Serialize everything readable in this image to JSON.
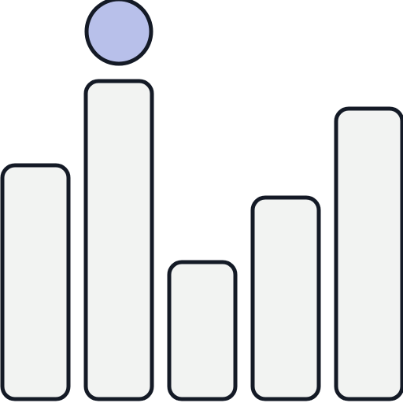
{
  "illustration": {
    "name": "bar-chart-icon-with-highlight-dot",
    "bars": [
      {
        "name": "bar-1",
        "level": 0.58
      },
      {
        "name": "bar-2",
        "level": 0.79
      },
      {
        "name": "bar-3",
        "level": 0.34
      },
      {
        "name": "bar-4",
        "level": 0.5
      },
      {
        "name": "bar-5",
        "level": 0.72
      }
    ],
    "highlight": {
      "name": "indicator-dot-icon",
      "above_bar_index": 1
    },
    "colors": {
      "background": "#ffffff",
      "bar_fill": "#f2f3f2",
      "outline": "#141a26",
      "dot_fill": "#b8c0ea"
    }
  }
}
